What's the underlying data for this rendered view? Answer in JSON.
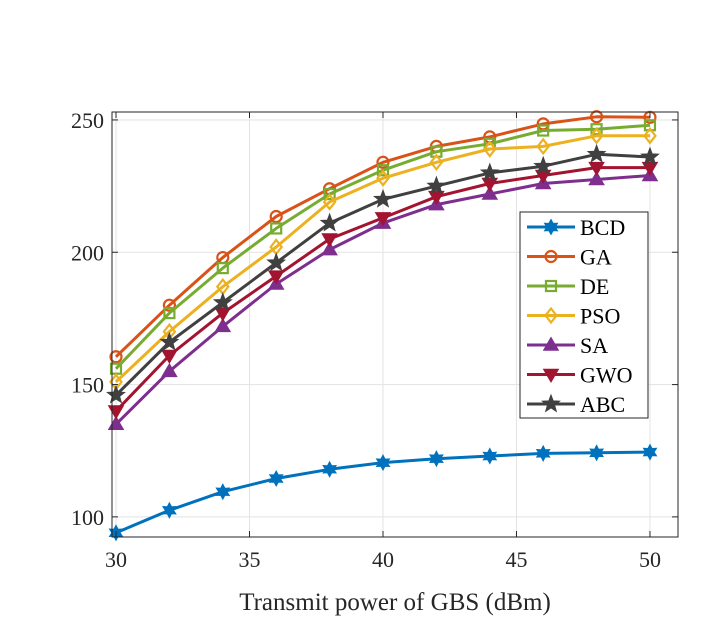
{
  "chart_data": {
    "type": "line",
    "title": "",
    "xlabel": "Transmit power of GBS (dBm)",
    "ylabel": "",
    "x": [
      30,
      32,
      34,
      36,
      38,
      40,
      42,
      44,
      46,
      48,
      50
    ],
    "xlim": [
      29.85,
      51.05
    ],
    "ylim": [
      92.4,
      253
    ],
    "xticks": [
      30,
      35,
      40,
      45,
      50
    ],
    "yticks": [
      100,
      150,
      200,
      250
    ],
    "grid": true,
    "legend_position": "right-center",
    "series": [
      {
        "name": "BCD",
        "color": "#0072BD",
        "marker": "hexagram",
        "values": [
          94,
          102.5,
          109.5,
          114.5,
          118,
          120.5,
          122,
          123,
          124,
          124.2,
          124.5
        ]
      },
      {
        "name": "GA",
        "color": "#D95319",
        "marker": "circle",
        "values": [
          160.5,
          180,
          198,
          213.5,
          224,
          234,
          240,
          243.6,
          248.5,
          251.2,
          251
        ]
      },
      {
        "name": "DE",
        "color": "#77AC30",
        "marker": "square",
        "values": [
          156,
          177,
          194,
          209,
          222,
          231,
          238,
          241,
          246,
          246.5,
          248
        ]
      },
      {
        "name": "PSO",
        "color": "#EDB120",
        "marker": "diamond",
        "values": [
          151,
          170,
          187,
          202,
          219,
          228,
          234,
          239,
          240,
          244,
          244
        ]
      },
      {
        "name": "SA",
        "color": "#7E2F8E",
        "marker": "triangle-up",
        "values": [
          135,
          155,
          172,
          188,
          201,
          211,
          218,
          222,
          226,
          227.5,
          229
        ]
      },
      {
        "name": "GWO",
        "color": "#A2142F",
        "marker": "triangle-down",
        "values": [
          140,
          161,
          177,
          191,
          205,
          213,
          221,
          226,
          229,
          232,
          232
        ]
      },
      {
        "name": "ABC",
        "color": "#404040",
        "marker": "pentagram",
        "values": [
          146,
          166,
          181,
          196,
          211,
          220,
          225,
          230,
          232.5,
          237,
          236
        ]
      }
    ]
  }
}
